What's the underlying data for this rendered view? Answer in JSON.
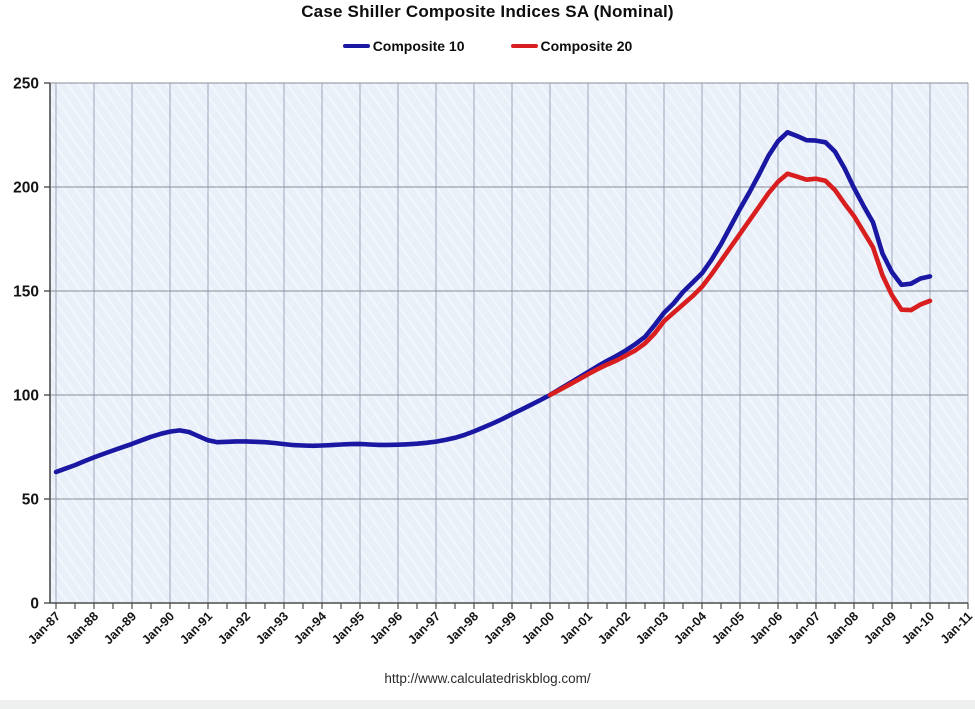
{
  "footer": {
    "url": "http://www.calculatedriskblog.com/"
  },
  "colors": {
    "composite10": "#1a17a3",
    "composite20": "#d81e1e",
    "plot_background": "#e9f0f9",
    "h_gridline": "#898e97",
    "v_gridline": "#9fa8bb",
    "axis": "#4c4c4c",
    "tick_text": "#141414"
  },
  "chart_data": {
    "type": "line",
    "title": "Case Shiller Composite Indices SA (Nominal)",
    "xlabel": "",
    "ylabel": "",
    "grid": true,
    "legend_position": "top",
    "x_axis": {
      "range_years": [
        1987,
        2011
      ],
      "tick_labels": [
        "Jan-87",
        "Jan-88",
        "Jan-89",
        "Jan-90",
        "Jan-91",
        "Jan-92",
        "Jan-93",
        "Jan-94",
        "Jan-95",
        "Jan-96",
        "Jan-97",
        "Jan-98",
        "Jan-99",
        "Jan-00",
        "Jan-01",
        "Jan-02",
        "Jan-03",
        "Jan-04",
        "Jan-05",
        "Jan-06",
        "Jan-07",
        "Jan-08",
        "Jan-09",
        "Jan-10",
        "Jan-11"
      ],
      "minor_tick_interval_years": 0.5
    },
    "y_axis": {
      "range": [
        0,
        250
      ],
      "ticks": [
        0,
        50,
        100,
        150,
        200,
        250
      ]
    },
    "series": [
      {
        "name": "Composite 10",
        "color": "#1a17a3",
        "points": [
          [
            1987.0,
            63.0
          ],
          [
            1987.25,
            64.6
          ],
          [
            1987.5,
            66.3
          ],
          [
            1987.75,
            68.2
          ],
          [
            1988.0,
            70.0
          ],
          [
            1988.25,
            71.7
          ],
          [
            1988.5,
            73.3
          ],
          [
            1988.75,
            74.9
          ],
          [
            1989.0,
            76.5
          ],
          [
            1989.25,
            78.2
          ],
          [
            1989.5,
            79.9
          ],
          [
            1989.75,
            81.3
          ],
          [
            1990.0,
            82.4
          ],
          [
            1990.25,
            83.0
          ],
          [
            1990.5,
            82.2
          ],
          [
            1990.75,
            80.2
          ],
          [
            1991.0,
            78.2
          ],
          [
            1991.25,
            77.3
          ],
          [
            1991.5,
            77.5
          ],
          [
            1991.75,
            77.7
          ],
          [
            1992.0,
            77.7
          ],
          [
            1992.25,
            77.5
          ],
          [
            1992.5,
            77.3
          ],
          [
            1992.75,
            76.9
          ],
          [
            1993.0,
            76.4
          ],
          [
            1993.25,
            75.9
          ],
          [
            1993.5,
            75.7
          ],
          [
            1993.75,
            75.6
          ],
          [
            1994.0,
            75.7
          ],
          [
            1994.25,
            75.9
          ],
          [
            1994.5,
            76.2
          ],
          [
            1994.75,
            76.4
          ],
          [
            1995.0,
            76.5
          ],
          [
            1995.25,
            76.2
          ],
          [
            1995.5,
            76.0
          ],
          [
            1995.75,
            76.0
          ],
          [
            1996.0,
            76.1
          ],
          [
            1996.25,
            76.3
          ],
          [
            1996.5,
            76.6
          ],
          [
            1996.75,
            77.0
          ],
          [
            1997.0,
            77.6
          ],
          [
            1997.25,
            78.4
          ],
          [
            1997.5,
            79.4
          ],
          [
            1997.75,
            80.8
          ],
          [
            1998.0,
            82.5
          ],
          [
            1998.25,
            84.4
          ],
          [
            1998.5,
            86.4
          ],
          [
            1998.75,
            88.5
          ],
          [
            1999.0,
            90.8
          ],
          [
            1999.25,
            93.0
          ],
          [
            1999.5,
            95.3
          ],
          [
            1999.75,
            97.6
          ],
          [
            2000.0,
            100.0
          ],
          [
            2000.25,
            102.8
          ],
          [
            2000.5,
            105.5
          ],
          [
            2000.75,
            108.2
          ],
          [
            2001.0,
            111.0
          ],
          [
            2001.25,
            113.8
          ],
          [
            2001.5,
            116.4
          ],
          [
            2001.75,
            118.8
          ],
          [
            2002.0,
            121.5
          ],
          [
            2002.25,
            124.5
          ],
          [
            2002.5,
            128.0
          ],
          [
            2002.75,
            133.5
          ],
          [
            2003.0,
            139.5
          ],
          [
            2003.25,
            144.0
          ],
          [
            2003.5,
            149.5
          ],
          [
            2003.75,
            154.0
          ],
          [
            2004.0,
            158.5
          ],
          [
            2004.25,
            165.0
          ],
          [
            2004.5,
            172.5
          ],
          [
            2004.75,
            181.0
          ],
          [
            2005.0,
            189.5
          ],
          [
            2005.25,
            197.5
          ],
          [
            2005.5,
            206.0
          ],
          [
            2005.75,
            215.0
          ],
          [
            2006.0,
            222.0
          ],
          [
            2006.25,
            226.3
          ],
          [
            2006.5,
            224.5
          ],
          [
            2006.75,
            222.5
          ],
          [
            2007.0,
            222.3
          ],
          [
            2007.25,
            221.5
          ],
          [
            2007.5,
            217.0
          ],
          [
            2007.75,
            209.0
          ],
          [
            2008.0,
            199.5
          ],
          [
            2008.25,
            191.0
          ],
          [
            2008.5,
            183.0
          ],
          [
            2008.75,
            168.0
          ],
          [
            2009.0,
            159.0
          ],
          [
            2009.25,
            153.0
          ],
          [
            2009.5,
            153.5
          ],
          [
            2009.75,
            156.0
          ],
          [
            2010.0,
            157.0
          ]
        ]
      },
      {
        "name": "Composite 20",
        "color": "#d81e1e",
        "points": [
          [
            2000.0,
            100.0
          ],
          [
            2000.25,
            102.4
          ],
          [
            2000.5,
            104.9
          ],
          [
            2000.75,
            107.4
          ],
          [
            2001.0,
            110.0
          ],
          [
            2001.25,
            112.4
          ],
          [
            2001.5,
            114.6
          ],
          [
            2001.75,
            116.6
          ],
          [
            2002.0,
            119.0
          ],
          [
            2002.25,
            121.5
          ],
          [
            2002.5,
            124.8
          ],
          [
            2002.75,
            129.5
          ],
          [
            2003.0,
            135.5
          ],
          [
            2003.25,
            139.5
          ],
          [
            2003.5,
            143.5
          ],
          [
            2003.75,
            147.5
          ],
          [
            2004.0,
            152.0
          ],
          [
            2004.25,
            158.0
          ],
          [
            2004.5,
            164.5
          ],
          [
            2004.75,
            171.0
          ],
          [
            2005.0,
            177.5
          ],
          [
            2005.25,
            184.0
          ],
          [
            2005.5,
            190.5
          ],
          [
            2005.75,
            197.0
          ],
          [
            2006.0,
            202.5
          ],
          [
            2006.25,
            206.4
          ],
          [
            2006.5,
            205.0
          ],
          [
            2006.75,
            203.5
          ],
          [
            2007.0,
            204.0
          ],
          [
            2007.25,
            203.0
          ],
          [
            2007.5,
            198.5
          ],
          [
            2007.75,
            192.0
          ],
          [
            2008.0,
            186.0
          ],
          [
            2008.25,
            178.5
          ],
          [
            2008.5,
            171.0
          ],
          [
            2008.75,
            157.5
          ],
          [
            2009.0,
            148.0
          ],
          [
            2009.25,
            141.0
          ],
          [
            2009.5,
            140.8
          ],
          [
            2009.75,
            143.5
          ],
          [
            2010.0,
            145.3
          ]
        ]
      }
    ]
  }
}
